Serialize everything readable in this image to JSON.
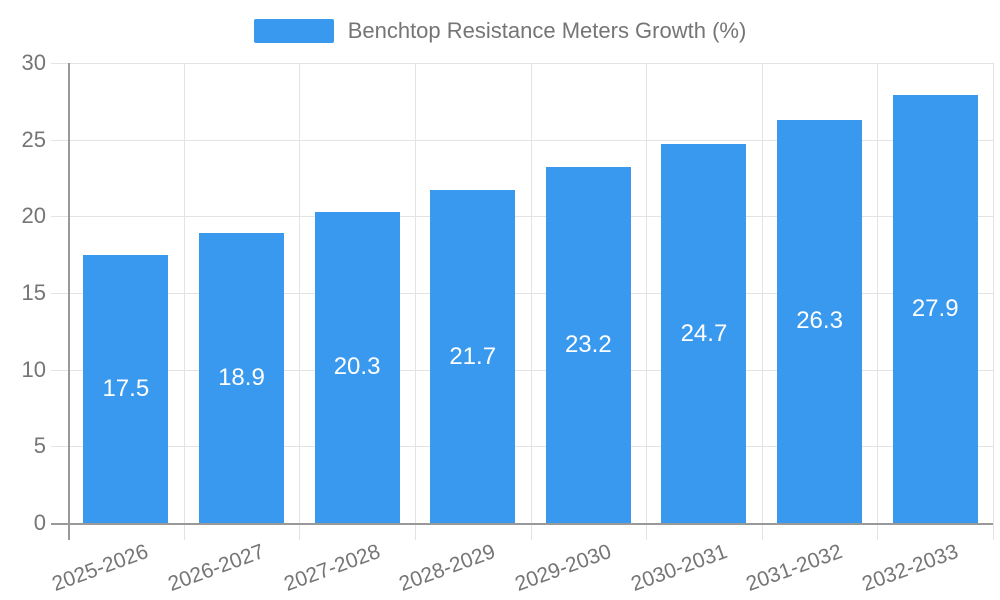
{
  "chart_data": {
    "type": "bar",
    "title": "Benchtop Resistance Meters Growth (%)",
    "categories": [
      "2025-2026",
      "2026-2027",
      "2027-2028",
      "2028-2029",
      "2029-2030",
      "2030-2031",
      "2031-2032",
      "2032-2033"
    ],
    "values": [
      17.5,
      18.9,
      20.3,
      21.7,
      23.2,
      24.7,
      26.3,
      27.9
    ],
    "value_labels": [
      "17.5",
      "18.9",
      "20.3",
      "21.7",
      "23.2",
      "24.7",
      "26.3",
      "27.9"
    ],
    "xlabel": "",
    "ylabel": "",
    "ylim": [
      0,
      30
    ],
    "yticks": [
      "0",
      "5",
      "10",
      "15",
      "20",
      "25",
      "30"
    ],
    "grid": true,
    "legend_position": "top",
    "x_label_rotation_deg": -20
  },
  "legend": {
    "label": "Benchtop Resistance Meters Growth (%)"
  },
  "colors": {
    "bar": "#3999ee",
    "bar_label": "#ffffff",
    "axis": "#999999",
    "grid": "#e3e3e3",
    "text": "#757575",
    "background": "#ffffff"
  }
}
